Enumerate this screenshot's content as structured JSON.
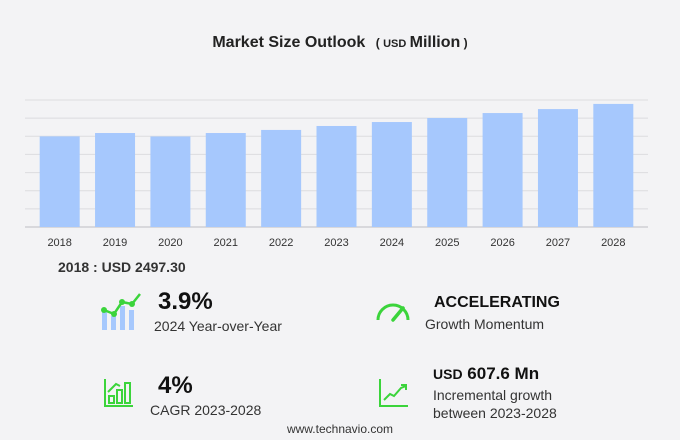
{
  "title": "Market Size Outlook",
  "unit_prefix": "USD",
  "unit": "Million",
  "base_label": "2018 : USD  2497.30",
  "colors": {
    "bar": "#a6c8fd",
    "accent": "#3bd43b",
    "grid": "#dcdcdf"
  },
  "chart_data": {
    "type": "bar",
    "title": "Market Size Outlook (USD Million)",
    "categories": [
      "2018",
      "2019",
      "2020",
      "2021",
      "2022",
      "2023",
      "2024",
      "2025",
      "2026",
      "2027",
      "2028"
    ],
    "values": [
      2497.3,
      2590,
      2495,
      2590,
      2675,
      2784,
      2893,
      3005,
      3140,
      3250,
      3392
    ],
    "ylim": [
      0,
      3500
    ],
    "grid": true,
    "y_tick_labels_shown": false
  },
  "kpis": {
    "yoy": {
      "value": "3.9%",
      "label": "2024 Year-over-Year",
      "icon": "growth-chart-icon"
    },
    "momentum": {
      "value": "ACCELERATING",
      "label": "Growth Momentum",
      "icon": "speedometer-icon"
    },
    "cagr": {
      "value": "4%",
      "label": "CAGR 2023-2028",
      "icon": "bar-chart-icon"
    },
    "incremental": {
      "prefix": "USD",
      "value": "607.6 Mn",
      "label1": "Incremental growth",
      "label2": "between 2023-2028",
      "icon": "trend-line-icon"
    }
  },
  "footer": "www.technavio.com"
}
